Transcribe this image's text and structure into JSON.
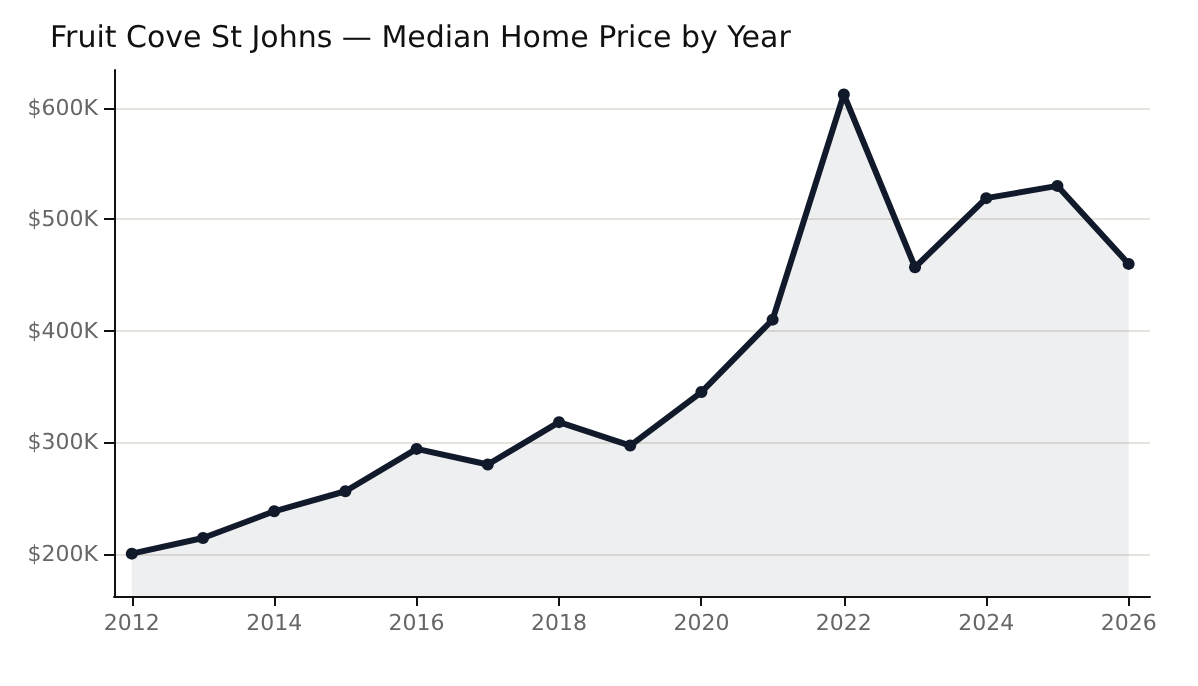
{
  "chart_data": {
    "type": "area",
    "title": "Fruit Cove St Johns — Median Home Price by Year",
    "x": [
      2012,
      2013,
      2014,
      2015,
      2016,
      2017,
      2018,
      2019,
      2020,
      2021,
      2022,
      2023,
      2024,
      2025,
      2026
    ],
    "series": [
      {
        "color": "#111a2b",
        "values": [
          200000,
          214000,
          238000,
          256000,
          294000,
          280000,
          318000,
          297000,
          345000,
          410000,
          612000,
          457000,
          519000,
          530000,
          460000
        ]
      }
    ],
    "xlim": [
      2011.75,
      2026.3
    ],
    "xticks": [
      2012,
      2014,
      2016,
      2018,
      2020,
      2022,
      2024,
      2026
    ],
    "ylim": [
      162000,
      634000
    ],
    "yticks": [
      {
        "value": 200000,
        "label": "$200K"
      },
      {
        "value": 300000,
        "label": "$300K"
      },
      {
        "value": 400000,
        "label": "$400K"
      },
      {
        "value": 500000,
        "label": "$500K"
      },
      {
        "value": 600000,
        "label": "$600K"
      }
    ],
    "grid": "y",
    "marker": "circle",
    "line_style": "solid"
  }
}
